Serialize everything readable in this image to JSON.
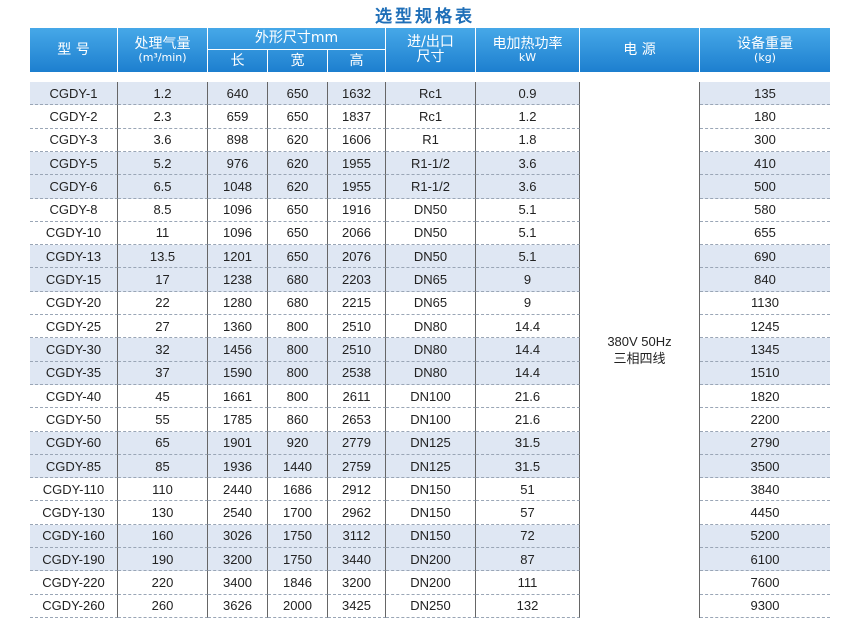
{
  "title": "选型规格表",
  "header": {
    "model": "型 号",
    "flow": "处理气量",
    "flow_unit": "(m³/min)",
    "size": "外形尺寸mm",
    "length": "长",
    "width": "宽",
    "height": "高",
    "port": "进/出口",
    "port_sub": "尺寸",
    "power": "电加热功率",
    "power_unit": "kW",
    "supply": "电 源",
    "weight": "设备重量",
    "weight_unit": "(kg)"
  },
  "table": {
    "supply": [
      "380V 50Hz",
      "三相四线"
    ],
    "rows": [
      [
        "CGDY-1",
        "1.2",
        "640",
        "650",
        "1632",
        "Rc1",
        "0.9",
        "135"
      ],
      [
        "CGDY-2",
        "2.3",
        "659",
        "650",
        "1837",
        "Rc1",
        "1.2",
        "180"
      ],
      [
        "CGDY-3",
        "3.6",
        "898",
        "620",
        "1606",
        "R1",
        "1.8",
        "300"
      ],
      [
        "CGDY-5",
        "5.2",
        "976",
        "620",
        "1955",
        "R1-1/2",
        "3.6",
        "410"
      ],
      [
        "CGDY-6",
        "6.5",
        "1048",
        "620",
        "1955",
        "R1-1/2",
        "3.6",
        "500"
      ],
      [
        "CGDY-8",
        "8.5",
        "1096",
        "650",
        "1916",
        "DN50",
        "5.1",
        "580"
      ],
      [
        "CGDY-10",
        "11",
        "1096",
        "650",
        "2066",
        "DN50",
        "5.1",
        "655"
      ],
      [
        "CGDY-13",
        "13.5",
        "1201",
        "650",
        "2076",
        "DN50",
        "5.1",
        "690"
      ],
      [
        "CGDY-15",
        "17",
        "1238",
        "680",
        "2203",
        "DN65",
        "9",
        "840"
      ],
      [
        "CGDY-20",
        "22",
        "1280",
        "680",
        "2215",
        "DN65",
        "9",
        "1130"
      ],
      [
        "CGDY-25",
        "27",
        "1360",
        "800",
        "2510",
        "DN80",
        "14.4",
        "1245"
      ],
      [
        "CGDY-30",
        "32",
        "1456",
        "800",
        "2510",
        "DN80",
        "14.4",
        "1345"
      ],
      [
        "CGDY-35",
        "37",
        "1590",
        "800",
        "2538",
        "DN80",
        "14.4",
        "1510"
      ],
      [
        "CGDY-40",
        "45",
        "1661",
        "800",
        "2611",
        "DN100",
        "21.6",
        "1820"
      ],
      [
        "CGDY-50",
        "55",
        "1785",
        "860",
        "2653",
        "DN100",
        "21.6",
        "2200"
      ],
      [
        "CGDY-60",
        "65",
        "1901",
        "920",
        "2779",
        "DN125",
        "31.5",
        "2790"
      ],
      [
        "CGDY-85",
        "85",
        "1936",
        "1440",
        "2759",
        "DN125",
        "31.5",
        "3500"
      ],
      [
        "CGDY-110",
        "110",
        "2440",
        "1686",
        "2912",
        "DN150",
        "51",
        "3840"
      ],
      [
        "CGDY-130",
        "130",
        "2540",
        "1700",
        "2962",
        "DN150",
        "57",
        "4450"
      ],
      [
        "CGDY-160",
        "160",
        "3026",
        "1750",
        "3112",
        "DN150",
        "72",
        "5200"
      ],
      [
        "CGDY-190",
        "190",
        "3200",
        "1750",
        "3440",
        "DN200",
        "87",
        "6100"
      ],
      [
        "CGDY-220",
        "220",
        "3400",
        "1846",
        "3200",
        "DN200",
        "111",
        "7600"
      ],
      [
        "CGDY-260",
        "260",
        "3626",
        "2000",
        "3425",
        "DN250",
        "132",
        "9300"
      ]
    ]
  }
}
